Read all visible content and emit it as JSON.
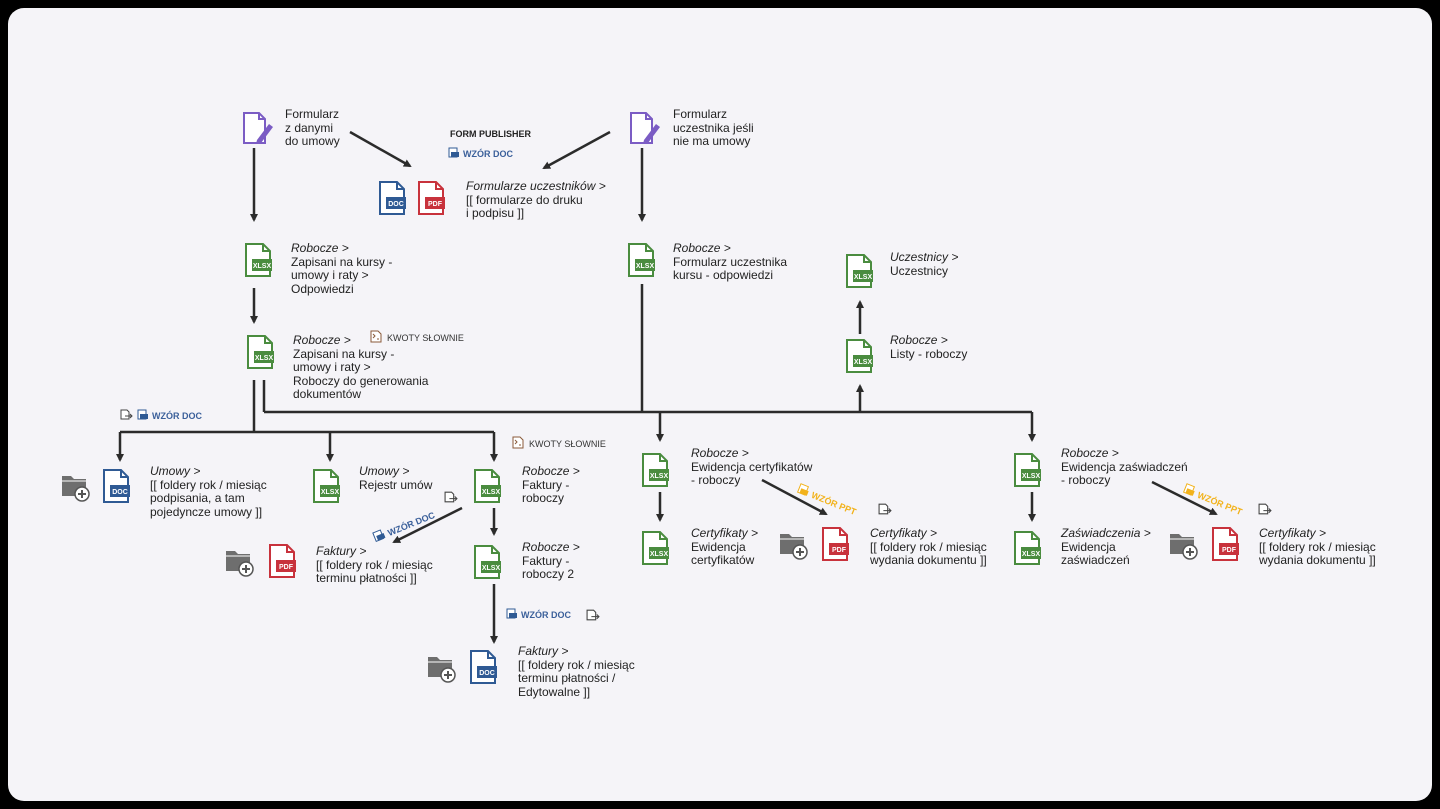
{
  "nodes": {
    "form_data": {
      "line1": "Formularz",
      "line2": "z danymi",
      "line3": "do umowy"
    },
    "form_participant": {
      "line1": "Formularz",
      "line2": "uczestnika jeśli",
      "line3": "nie ma umowy"
    },
    "form_publisher": {
      "title": "FORM PUBLISHER",
      "tag": "WZÓR DOC"
    },
    "formularze_uczestnikow": {
      "path": "Formularze uczestników >",
      "line1": "[[ formularze do druku",
      "line2": "i podpisu ]]"
    },
    "robocze_zapisani": {
      "path": "Robocze >",
      "line1": "Zapisani na kursy -",
      "line2": "umowy i raty >",
      "line3": "Odpowiedzi"
    },
    "robocze_formularz": {
      "path": "Robocze >",
      "line1": "Formularz uczestnika",
      "line2": "kursu - odpowiedzi"
    },
    "uczestnicy": {
      "path": "Uczestnicy >",
      "line1": "Uczestnicy"
    },
    "robocze_listy": {
      "path": "Robocze >",
      "line1": "Listy - roboczy"
    },
    "robocze_generowanie": {
      "path": "Robocze >",
      "line1": "Zapisani na kursy -",
      "line2": "umowy i raty >",
      "line3": "Roboczy do generowania",
      "line4": "dokumentów",
      "tag": "KWOTY SŁOWNIE"
    },
    "umowy_foldery": {
      "path": "Umowy >",
      "line1": "[[ foldery rok / miesiąc",
      "line2": "podpisania, a tam",
      "line3": "pojedyncze umowy ]]"
    },
    "umowy_rejestr": {
      "path": "Umowy >",
      "line1": "Rejestr umów"
    },
    "robocze_faktury": {
      "path": "Robocze >",
      "line1": "Faktury -",
      "line2": "roboczy",
      "tag": "KWOTY SŁOWNIE"
    },
    "faktury_pdf": {
      "path": "Faktury >",
      "line1": "[[ foldery rok / miesiąc",
      "line2": "terminu płatności ]]"
    },
    "robocze_faktury2": {
      "path": "Robocze >",
      "line1": "Faktury -",
      "line2": "roboczy 2"
    },
    "faktury_doc": {
      "path": "Faktury >",
      "line1": "[[ foldery rok / miesiąc",
      "line2": "terminu płatności /",
      "line3": "Edytowalne ]]"
    },
    "robocze_ewidencja_cert": {
      "path": "Robocze >",
      "line1": "Ewidencja certyfikatów",
      "line2": "- roboczy"
    },
    "certyfikaty_ewidencja": {
      "path": "Certyfikaty >",
      "line1": "Ewidencja",
      "line2": "certyfikatów"
    },
    "certyfikaty_pdf_1": {
      "path": "Certyfikaty >",
      "line1": "[[ foldery rok / miesiąc",
      "line2": "wydania dokumentu ]]"
    },
    "robocze_ewidencja_zasw": {
      "path": "Robocze >",
      "line1": "Ewidencja zaświadczeń",
      "line2": "- roboczy"
    },
    "zaswiadczenia_ewidencja": {
      "path": "Zaświadczenia >",
      "line1": "Ewidencja",
      "line2": "zaświadczeń"
    },
    "certyfikaty_pdf_2": {
      "path": "Certyfikaty >",
      "line1": "[[ foldery rok / miesiąc",
      "line2": "wydania dokumentu ]]"
    }
  },
  "tags": {
    "wzor_doc": "WZÓR DOC",
    "wzor_ppt": "WZÓR PPT",
    "kwoty": "KWOTY SŁOWNIE"
  },
  "icon_labels": {
    "xlsx": "XLSX",
    "doc": "DOC",
    "pdf": "PDF"
  },
  "colors": {
    "xlsx": "#4a8c3f",
    "doc": "#2f5a94",
    "pdf": "#c8323c",
    "form": "#7b5cc4",
    "folder": "#6e6e6e",
    "ppt": "#f2b21b",
    "line": "#2b2b2b"
  }
}
